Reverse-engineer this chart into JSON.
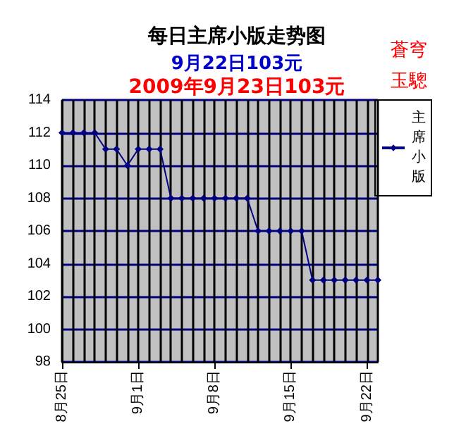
{
  "chart_data": {
    "type": "line",
    "title": "每日主席小版走势图",
    "subtitle": "9月22日103元",
    "annotations": [
      "2009年9月23日103元",
      "蒼穹玉驄"
    ],
    "categories": [
      "8月25日",
      null,
      null,
      null,
      null,
      null,
      null,
      "9月1日",
      null,
      null,
      null,
      null,
      null,
      null,
      "9月8日",
      null,
      null,
      null,
      null,
      null,
      null,
      "9月15日",
      null,
      null,
      null,
      null,
      null,
      null,
      "9月22日",
      null
    ],
    "series": [
      {
        "name": "主席小版",
        "color": "#000080",
        "values": [
          112,
          112,
          112,
          112,
          111,
          111,
          110,
          111,
          111,
          111,
          108,
          108,
          108,
          108,
          108,
          108,
          108,
          108,
          106,
          106,
          106,
          106,
          106,
          103,
          103,
          103,
          103,
          103,
          103,
          103
        ]
      }
    ],
    "ylim": [
      98,
      114
    ],
    "yticks": [
      98,
      100,
      102,
      104,
      106,
      108,
      110,
      112,
      114
    ],
    "grid": true,
    "legend": "right",
    "marker": "diamond",
    "line_style": "solid"
  }
}
